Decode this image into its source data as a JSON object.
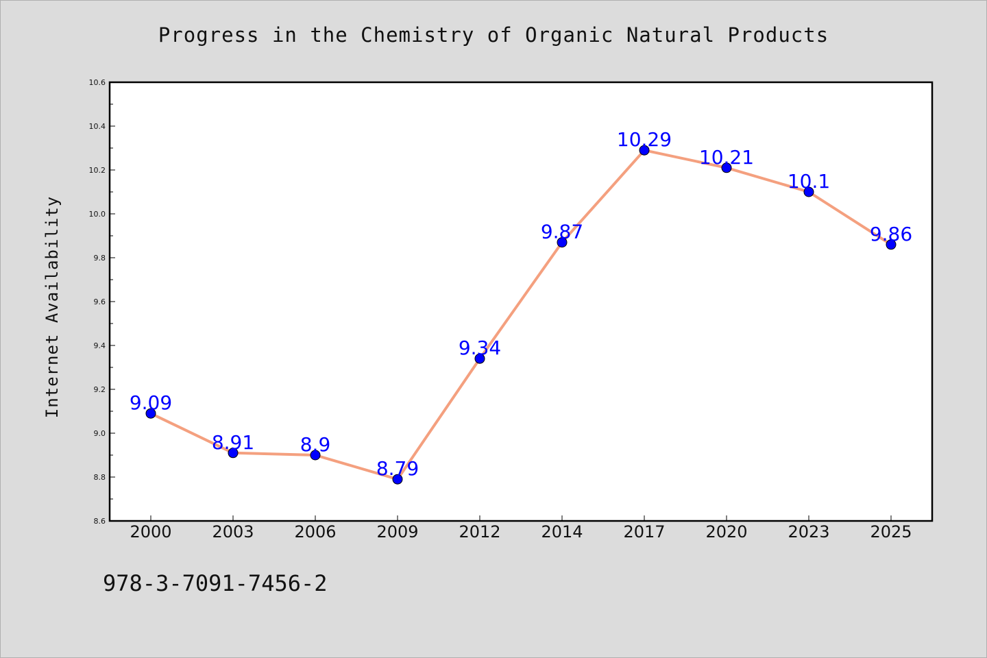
{
  "chart_data": {
    "type": "line",
    "title": "Progress in the Chemistry of Organic Natural Products",
    "xlabel": "",
    "ylabel": "Internet Availability",
    "categories": [
      "2000",
      "2003",
      "2006",
      "2009",
      "2012",
      "2014",
      "2017",
      "2020",
      "2023",
      "2025"
    ],
    "values": [
      9.09,
      8.91,
      8.9,
      8.79,
      9.34,
      9.87,
      10.29,
      10.21,
      10.1,
      9.86
    ],
    "data_labels": [
      "9.09",
      "8.91",
      "8.9",
      "8.79",
      "9.34",
      "9.87",
      "10.29",
      "10.21",
      "10.1",
      "9.86"
    ],
    "ylim": [
      8.6,
      10.6
    ],
    "yticks": [
      "8.6",
      "8.8",
      "9.0",
      "9.2",
      "9.4",
      "9.6",
      "9.8",
      "10.0",
      "10.2",
      "10.4",
      "10.6"
    ],
    "grid": false,
    "legend": "none",
    "colors": {
      "line": "#f4a07f",
      "marker": "#0000ff",
      "label": "#0000ff",
      "background": "#dcdcdc",
      "plot_background": "#ffffff"
    }
  },
  "footer": {
    "isbn": "978-3-7091-7456-2"
  }
}
